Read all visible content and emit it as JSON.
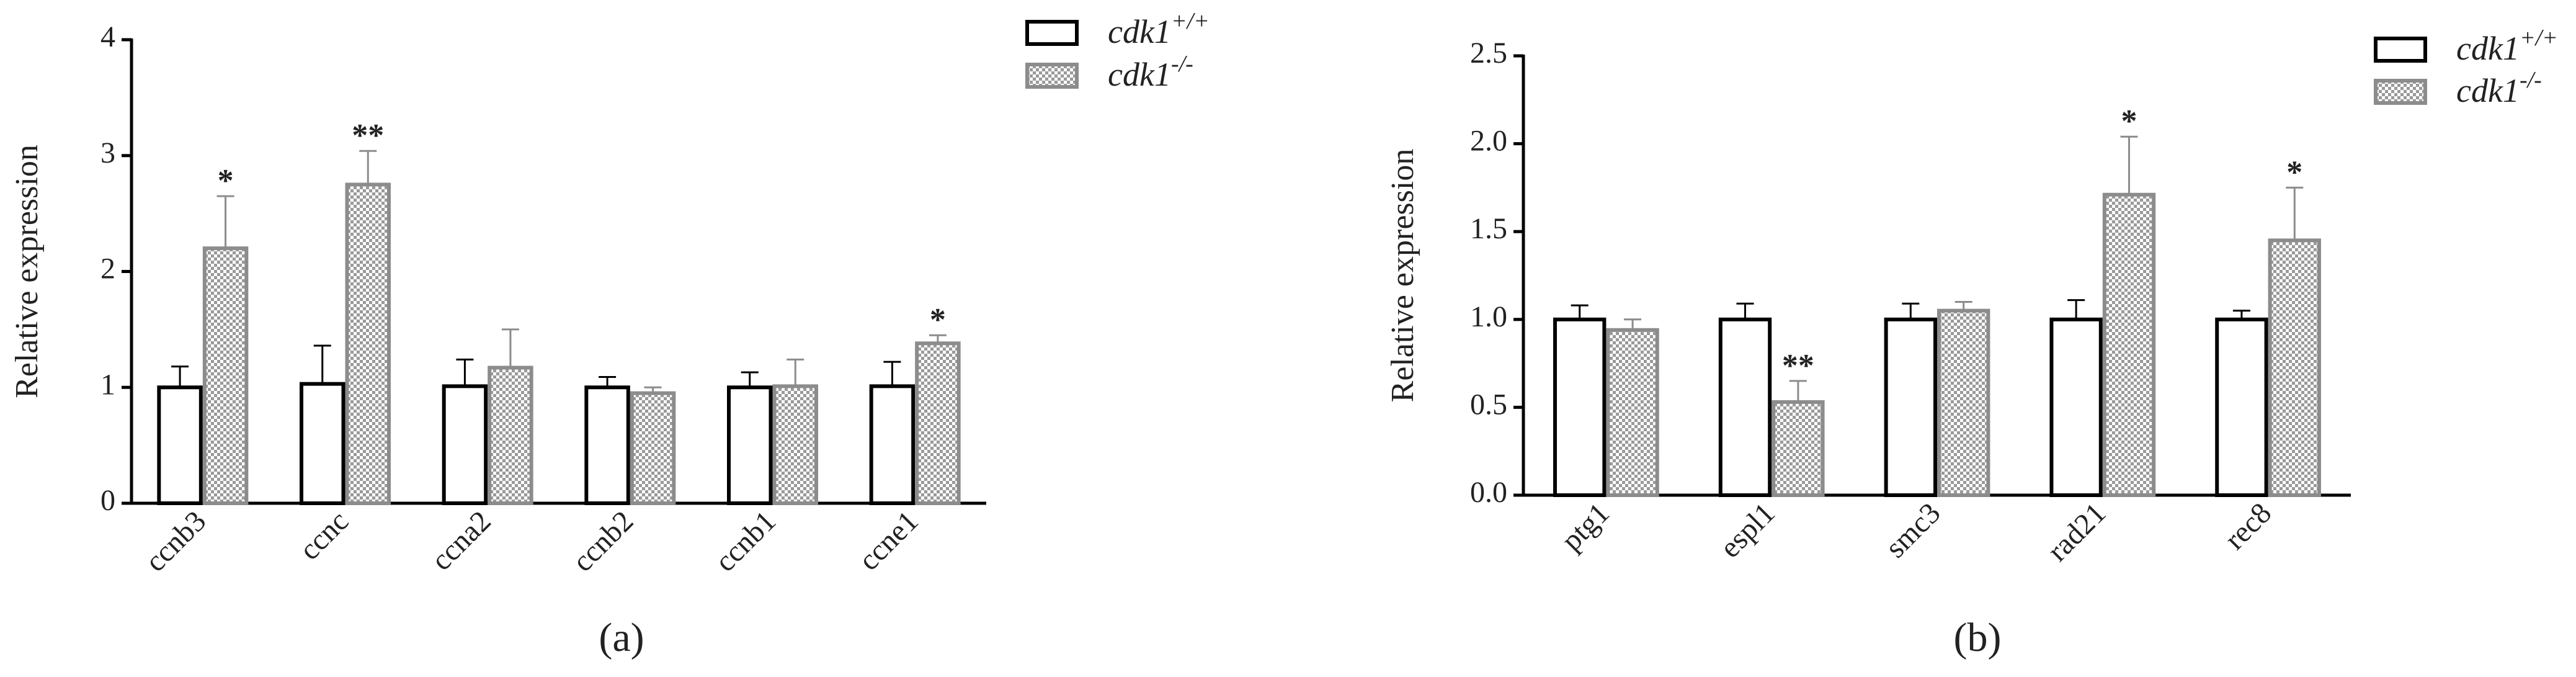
{
  "chart_data": [
    {
      "type": "bar",
      "caption": "(a)",
      "ylabel": "Relative expression",
      "categories": [
        "ccnb3",
        "ccnc",
        "ccna2",
        "ccnb2",
        "ccnb1",
        "ccne1"
      ],
      "series": [
        {
          "name": "cdk1",
          "name_sup": "+/+",
          "color": "#000000",
          "checkered": false,
          "values": [
            1.0,
            1.03,
            1.01,
            1.0,
            1.0,
            1.01
          ],
          "errors": [
            0.18,
            0.33,
            0.23,
            0.09,
            0.13,
            0.21
          ]
        },
        {
          "name": "cdk1",
          "name_sup": "-/-",
          "color": "#8c8c8c",
          "checkered": true,
          "values": [
            2.2,
            2.75,
            1.17,
            0.95,
            1.01,
            1.38
          ],
          "errors": [
            0.45,
            0.29,
            0.33,
            0.05,
            0.23,
            0.07
          ],
          "annotations": [
            "*",
            "**",
            null,
            null,
            null,
            "*"
          ]
        }
      ],
      "ylim": [
        0,
        4
      ],
      "yticks": [
        0,
        1,
        2,
        3,
        4
      ]
    },
    {
      "type": "bar",
      "caption": "(b)",
      "ylabel": "Relative expression",
      "categories": [
        "ptg1",
        "espl1",
        "smc3",
        "rad21",
        "rec8"
      ],
      "series": [
        {
          "name": "cdk1",
          "name_sup": "+/+",
          "color": "#000000",
          "checkered": false,
          "values": [
            1.0,
            1.0,
            1.0,
            1.0,
            1.0
          ],
          "errors": [
            0.08,
            0.09,
            0.09,
            0.11,
            0.05
          ]
        },
        {
          "name": "cdk1",
          "name_sup": "-/-",
          "color": "#8c8c8c",
          "checkered": true,
          "values": [
            0.94,
            0.53,
            1.05,
            1.71,
            1.45
          ],
          "errors": [
            0.06,
            0.12,
            0.05,
            0.33,
            0.3
          ],
          "annotations": [
            null,
            "**",
            null,
            "*",
            "*"
          ]
        }
      ],
      "ylim": [
        0,
        2.5
      ],
      "yticks": [
        {
          "value": 0,
          "label": "0.0"
        },
        0.5,
        {
          "value": 1,
          "label": "1.0"
        },
        1.5,
        {
          "value": 2,
          "label": "2.0"
        },
        2.5
      ]
    }
  ]
}
